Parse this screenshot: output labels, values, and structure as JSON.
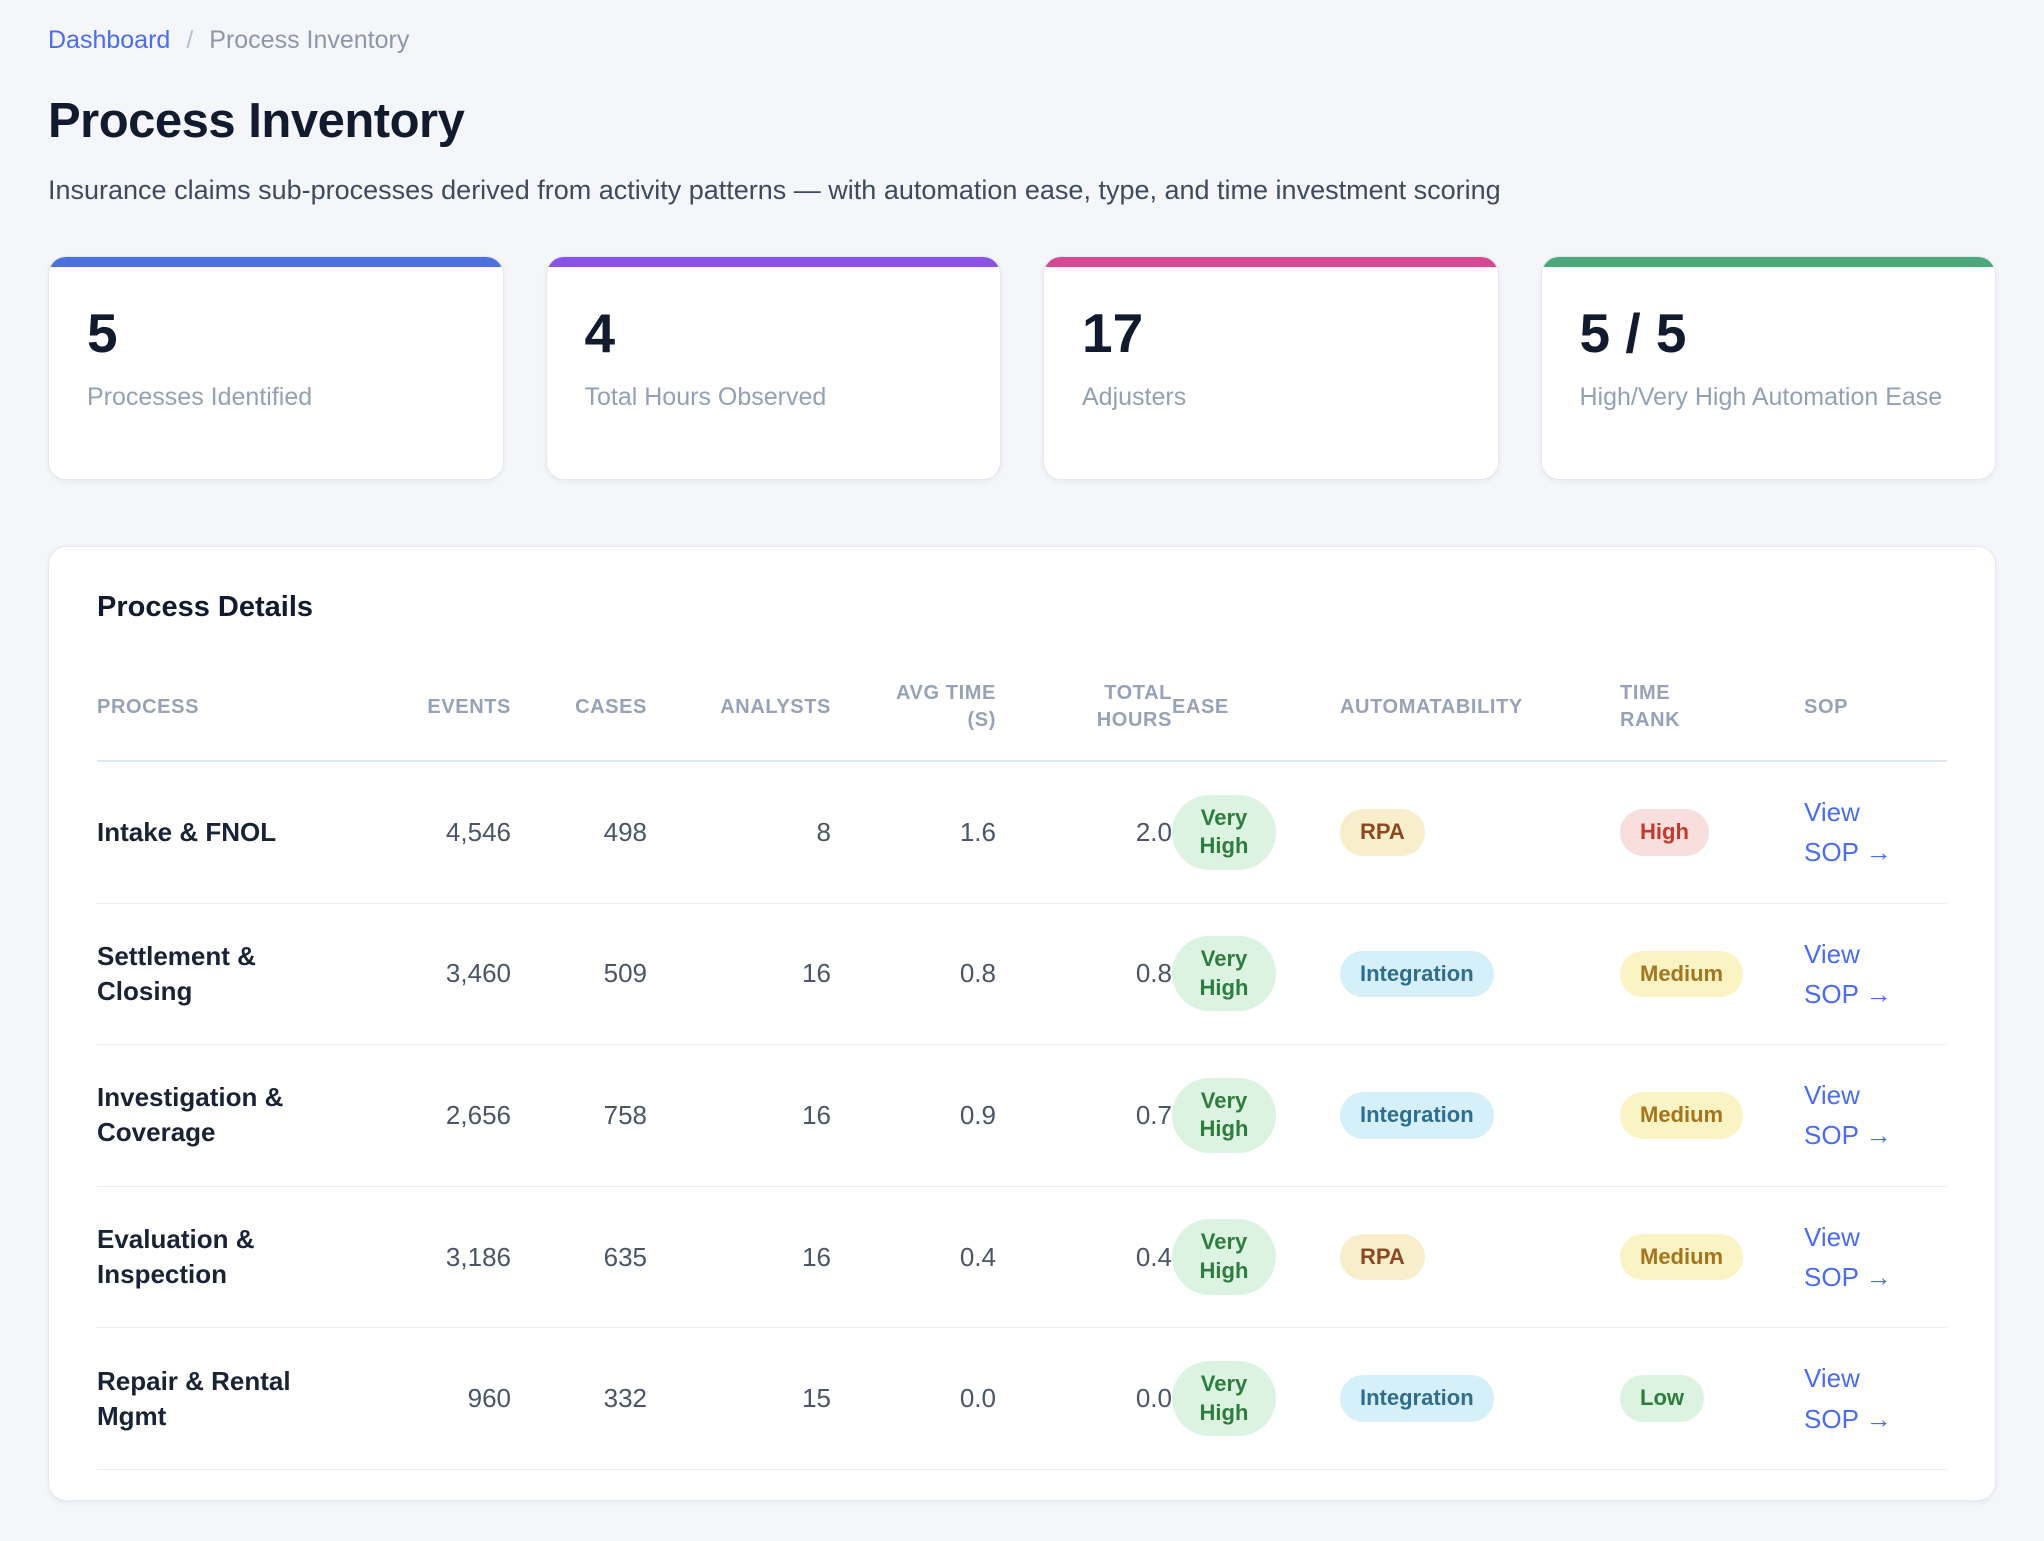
{
  "breadcrumb": {
    "link": "Dashboard",
    "separator": "/",
    "current": "Process Inventory"
  },
  "header": {
    "title": "Process Inventory",
    "subtitle": "Insurance claims sub-processes derived from activity patterns — with automation ease, type, and time investment scoring"
  },
  "stats": [
    {
      "value": "5",
      "label": "Processes Identified",
      "accent": "#4d72e0"
    },
    {
      "value": "4",
      "label": "Total Hours Observed",
      "accent": "#8b52e8"
    },
    {
      "value": "17",
      "label": "Adjusters",
      "accent": "#d6488f"
    },
    {
      "value": "5 / 5",
      "label": "High/Very High Automation Ease",
      "accent": "#4aa87a"
    }
  ],
  "table": {
    "title": "Process Details",
    "columns": [
      {
        "label": "PROCESS",
        "key": "process",
        "align": "left",
        "type": "name"
      },
      {
        "label": "EVENTS",
        "key": "events",
        "align": "right",
        "type": "num"
      },
      {
        "label": "CASES",
        "key": "cases",
        "align": "right",
        "type": "num"
      },
      {
        "label": "ANALYSTS",
        "key": "analysts",
        "align": "right",
        "type": "num"
      },
      {
        "label": "AVG TIME (S)",
        "key": "avg_time_s",
        "align": "right",
        "type": "num",
        "stack": true
      },
      {
        "label": "TOTAL HOURS",
        "key": "total_hours",
        "align": "right",
        "type": "num",
        "stack": true
      },
      {
        "label": "EASE",
        "key": "ease",
        "align": "left",
        "type": "badge"
      },
      {
        "label": "AUTOMATABILITY",
        "key": "automatability",
        "align": "left",
        "type": "badge"
      },
      {
        "label": "TIME RANK",
        "key": "time_rank",
        "align": "left",
        "type": "badge",
        "stack": true
      },
      {
        "label": "SOP",
        "key": "sop_label",
        "align": "left",
        "type": "link"
      }
    ],
    "rows": [
      {
        "process": "Intake & FNOL",
        "events": "4,546",
        "cases": "498",
        "analysts": "8",
        "avg_time_s": "1.6",
        "total_hours": "2.0",
        "ease": "Very High",
        "automatability": "RPA",
        "time_rank": "High",
        "sop_label": "View SOP →"
      },
      {
        "process": "Settlement & Closing",
        "events": "3,460",
        "cases": "509",
        "analysts": "16",
        "avg_time_s": "0.8",
        "total_hours": "0.8",
        "ease": "Very High",
        "automatability": "Integration",
        "time_rank": "Medium",
        "sop_label": "View SOP →"
      },
      {
        "process": "Investigation & Coverage",
        "events": "2,656",
        "cases": "758",
        "analysts": "16",
        "avg_time_s": "0.9",
        "total_hours": "0.7",
        "ease": "Very High",
        "automatability": "Integration",
        "time_rank": "Medium",
        "sop_label": "View SOP →"
      },
      {
        "process": "Evaluation & Inspection",
        "events": "3,186",
        "cases": "635",
        "analysts": "16",
        "avg_time_s": "0.4",
        "total_hours": "0.4",
        "ease": "Very High",
        "automatability": "RPA",
        "time_rank": "Medium",
        "sop_label": "View SOP →"
      },
      {
        "process": "Repair & Rental Mgmt",
        "events": "960",
        "cases": "332",
        "analysts": "15",
        "avg_time_s": "0.0",
        "total_hours": "0.0",
        "ease": "Very High",
        "automatability": "Integration",
        "time_rank": "Low",
        "sop_label": "View SOP →"
      }
    ],
    "badge_colors": {
      "Very High": {
        "bg": "#dcf3e2",
        "fg": "#2e7d3e"
      },
      "RPA": {
        "bg": "#f9eecb",
        "fg": "#8a4a24"
      },
      "Integration": {
        "bg": "#d5f0f8",
        "fg": "#2f6e8e"
      },
      "High": {
        "bg": "#f8dedd",
        "fg": "#c03b2d"
      },
      "Medium": {
        "bg": "#faf3c4",
        "fg": "#a4751f"
      },
      "Low": {
        "bg": "#dcf3e2",
        "fg": "#2e7d3e"
      }
    }
  }
}
